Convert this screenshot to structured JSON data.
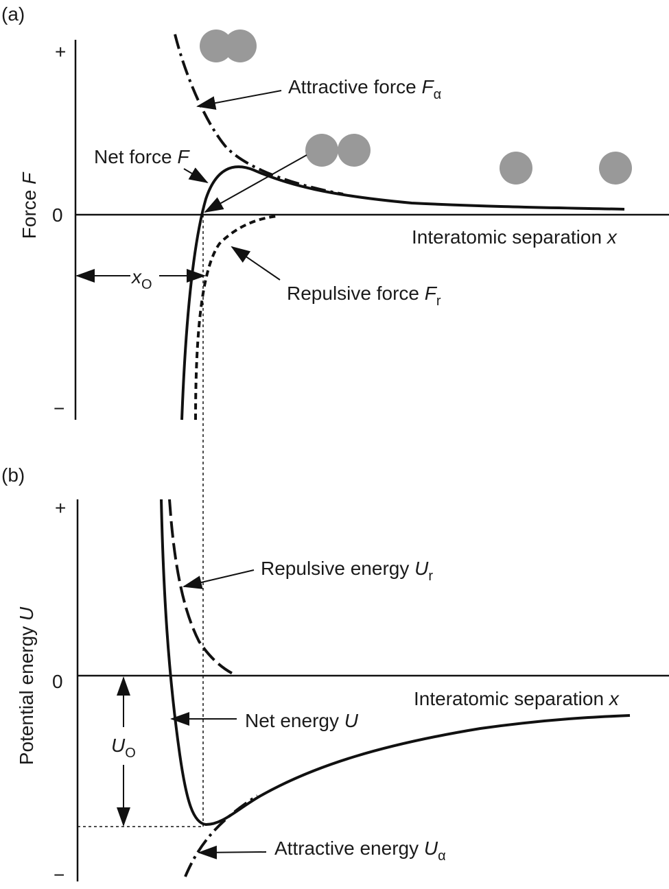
{
  "panel_a": {
    "label": "(a)",
    "y_axis": {
      "plus": "+",
      "zero": "0",
      "minus": "−",
      "title": "Force ",
      "title_symbol": "F"
    },
    "x_axis_label": {
      "text": "Interatomic separation ",
      "symbol": "x"
    },
    "attractive_force": {
      "text": "Attractive force ",
      "symbol": "F",
      "subscript": "α"
    },
    "net_force": {
      "text": "Net force ",
      "symbol": "F"
    },
    "repulsive_force": {
      "text": "Repulsive force ",
      "symbol": "F",
      "subscript": "r"
    },
    "equilibrium": {
      "symbol": "x",
      "subscript": "O"
    }
  },
  "panel_b": {
    "label": "(b)",
    "y_axis": {
      "plus": "+",
      "zero": "0",
      "minus": "−",
      "title": "Potential energy ",
      "title_symbol": "U"
    },
    "x_axis_label": {
      "text": "Interatomic separation ",
      "symbol": "x"
    },
    "repulsive_energy": {
      "text": "Repulsive energy ",
      "symbol": "U",
      "subscript": "r"
    },
    "net_energy": {
      "text": "Net energy ",
      "symbol": "U"
    },
    "attractive_energy": {
      "text": "Attractive energy ",
      "symbol": "U",
      "subscript": "α"
    },
    "well_depth": {
      "symbol": "U",
      "subscript": "O"
    }
  }
}
